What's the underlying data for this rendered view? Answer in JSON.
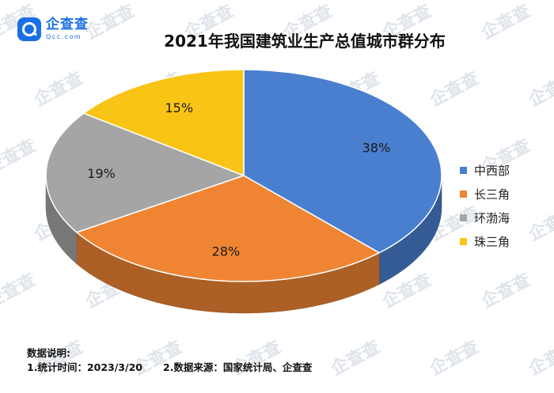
{
  "brand": {
    "name": "企查查",
    "domain": "Qcc.com"
  },
  "watermark_text": "企查查",
  "chart_data": {
    "type": "pie",
    "style": "3d",
    "title": "2021年我国建筑业生产总值城市群分布",
    "categories": [
      "中西部",
      "长三角",
      "环渤海",
      "珠三角"
    ],
    "values": [
      38,
      28,
      19,
      15
    ],
    "value_labels": [
      "38%",
      "28%",
      "19%",
      "15%"
    ],
    "colors": [
      "#4a7fd0",
      "#ef8533",
      "#a5a5a5",
      "#f8c517"
    ],
    "legend_position": "right"
  },
  "footnote": {
    "heading": "数据说明:",
    "item1": "1.统计时间：2023/3/20",
    "item2": "2.数据来源：国家统计局、企查查"
  }
}
